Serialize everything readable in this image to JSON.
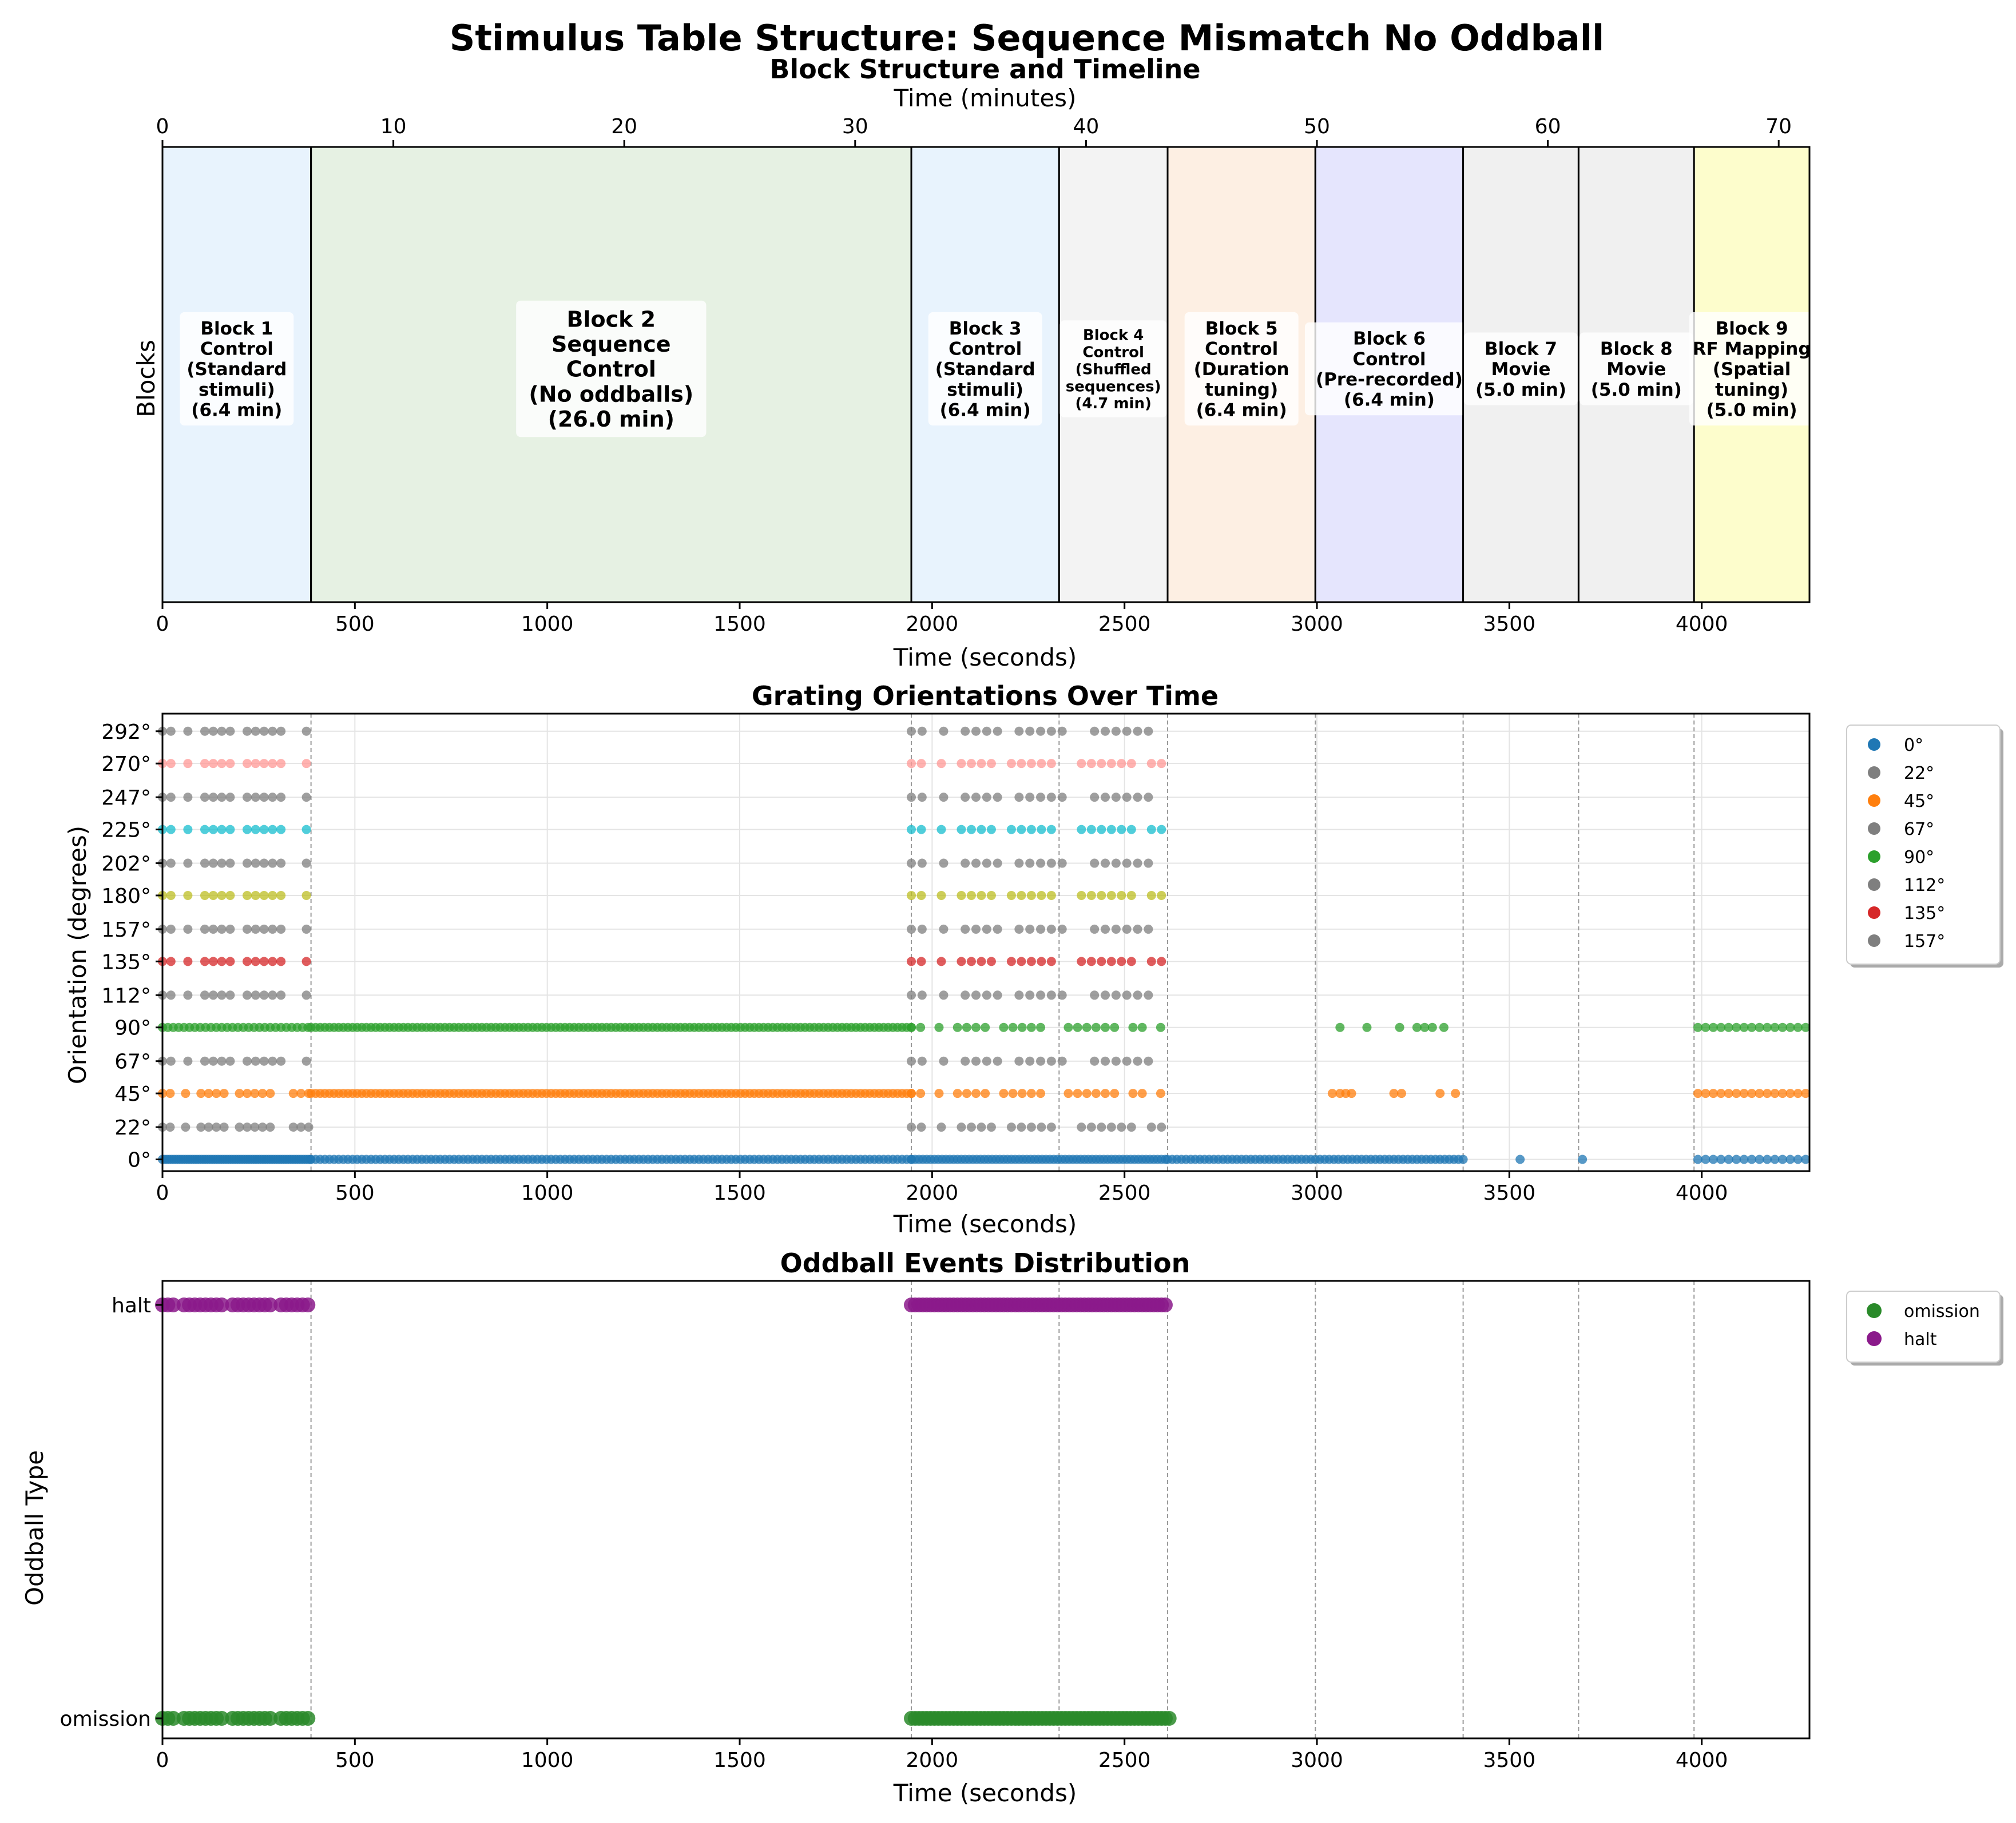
{
  "figure_title": "Stimulus Table Structure: Sequence Mismatch No Oddball",
  "chart_data": [
    {
      "type": "timeline",
      "title": "Block Structure and Timeline",
      "xlabel": "Time (seconds)",
      "ylabel": "Blocks",
      "top_xlabel": "Time (minutes)",
      "xlim": [
        0,
        4280
      ],
      "xticks": [
        0,
        500,
        1000,
        1500,
        2000,
        2500,
        3000,
        3500,
        4000
      ],
      "minute_ticks": [
        0,
        10,
        20,
        30,
        40,
        50,
        60,
        70
      ],
      "blocks": [
        {
          "start": 0,
          "end": 386,
          "color": "#e8f3fd",
          "label": [
            "Block 1",
            "Control",
            "(Standard",
            "stimuli)",
            "(6.4 min)"
          ],
          "font": "small"
        },
        {
          "start": 386,
          "end": 1946,
          "color": "#e6f1e3",
          "label": [
            "Block 2",
            "Sequence",
            "Control",
            "(No oddballs)",
            "(26.0 min)"
          ],
          "font": "large"
        },
        {
          "start": 1946,
          "end": 2330,
          "color": "#e8f3fd",
          "label": [
            "Block 3",
            "Control",
            "(Standard",
            "stimuli)",
            "(6.4 min)"
          ],
          "font": "small"
        },
        {
          "start": 2330,
          "end": 2612,
          "color": "#f3f3f3",
          "label": [
            "Block 4",
            "Control",
            "(Shuffled",
            "sequences)",
            "(4.7 min)"
          ],
          "font": "tiny"
        },
        {
          "start": 2612,
          "end": 2996,
          "color": "#fdefe3",
          "label": [
            "Block 5",
            "Control",
            "(Duration",
            "tuning)",
            "(6.4 min)"
          ],
          "font": "small"
        },
        {
          "start": 2996,
          "end": 3380,
          "color": "#e5e5fd",
          "label": [
            "Block 6",
            "Control",
            "(Pre-recorded)",
            "(6.4 min)"
          ],
          "font": "small"
        },
        {
          "start": 3380,
          "end": 3680,
          "color": "#f0f0f0",
          "label": [
            "Block 7",
            "Movie",
            "(5.0 min)"
          ],
          "font": "small"
        },
        {
          "start": 3680,
          "end": 3980,
          "color": "#f0f0f0",
          "label": [
            "Block 8",
            "Movie",
            "(5.0 min)"
          ],
          "font": "small"
        },
        {
          "start": 3980,
          "end": 4280,
          "color": "#fdfdcc",
          "label": [
            "Block 9",
            "RF Mapping",
            "(Spatial",
            "tuning)",
            "(5.0 min)"
          ],
          "font": "small"
        }
      ]
    },
    {
      "type": "scatter",
      "title": "Grating Orientations Over Time",
      "xlabel": "Time (seconds)",
      "ylabel": "Orientation (degrees)",
      "xlim": [
        0,
        4280
      ],
      "xticks": [
        0,
        500,
        1000,
        1500,
        2000,
        2500,
        3000,
        3500,
        4000
      ],
      "yticks": [
        0,
        22,
        45,
        67,
        90,
        112,
        135,
        157,
        180,
        202,
        225,
        247,
        270,
        292
      ],
      "ytick_labels": [
        "0°",
        "22°",
        "45°",
        "67°",
        "90°",
        "112°",
        "135°",
        "157°",
        "180°",
        "202°",
        "225°",
        "247°",
        "270°",
        "292°"
      ],
      "block_boundaries": [
        386,
        1946,
        2330,
        2612,
        2996,
        3380,
        3680,
        3980
      ],
      "grid": true,
      "legend": {
        "position": "outside top-right",
        "entries": [
          {
            "label": "0°",
            "color": "#1f77b4"
          },
          {
            "label": "22°",
            "color": "#7f7f7f"
          },
          {
            "label": "45°",
            "color": "#ff7f0e"
          },
          {
            "label": "67°",
            "color": "#7f7f7f"
          },
          {
            "label": "90°",
            "color": "#2ca02c"
          },
          {
            "label": "112°",
            "color": "#7f7f7f"
          },
          {
            "label": "135°",
            "color": "#d62728"
          },
          {
            "label": "157°",
            "color": "#7f7f7f"
          }
        ]
      },
      "series": [
        {
          "orientation": 0,
          "color": "#1f77b4",
          "segments": [
            [
              0,
              386,
              6
            ],
            [
              386,
              1946,
              12
            ],
            [
              1946,
              2612,
              10
            ],
            [
              2612,
              3386,
              12
            ]
          ],
          "points": [
            3528,
            3690,
            3990,
            4010,
            4030,
            4050,
            4070,
            4090,
            4110,
            4130,
            4150,
            4170,
            4190,
            4210,
            4230,
            4250,
            4270
          ]
        },
        {
          "orientation": 22,
          "color": "#7f7f7f",
          "segments": [
            [
              0,
              386,
              20
            ],
            [
              1946,
              2612,
              26
            ]
          ],
          "points": []
        },
        {
          "orientation": 45,
          "color": "#ff7f0e",
          "segments": [
            [
              0,
              386,
              20
            ],
            [
              386,
              1946,
              12
            ],
            [
              1946,
              2612,
              24
            ]
          ],
          "points": [
            3040,
            3060,
            3075,
            3090,
            3200,
            3220,
            3320,
            3360,
            3990,
            4010,
            4030,
            4050,
            4070,
            4090,
            4110,
            4130,
            4150,
            4170,
            4190,
            4210,
            4230,
            4250,
            4270
          ]
        },
        {
          "orientation": 67,
          "color": "#7f7f7f",
          "segments": [
            [
              0,
              386,
              22
            ],
            [
              1946,
              2612,
              28
            ]
          ],
          "points": []
        },
        {
          "orientation": 90,
          "color": "#2ca02c",
          "segments": [
            [
              0,
              386,
              14
            ],
            [
              386,
              1946,
              12
            ],
            [
              1946,
              2612,
              24
            ]
          ],
          "points": [
            3060,
            3130,
            3215,
            3260,
            3280,
            3300,
            3330,
            3990,
            4010,
            4030,
            4050,
            4070,
            4090,
            4110,
            4130,
            4150,
            4170,
            4190,
            4210,
            4230,
            4250,
            4270
          ]
        },
        {
          "orientation": 112,
          "color": "#7f7f7f",
          "segments": [
            [
              0,
              386,
              22
            ],
            [
              1946,
              2612,
              28
            ]
          ],
          "points": []
        },
        {
          "orientation": 135,
          "color": "#d62728",
          "segments": [
            [
              0,
              386,
              22
            ],
            [
              1946,
              2612,
              26
            ]
          ],
          "points": []
        },
        {
          "orientation": 157,
          "color": "#7f7f7f",
          "segments": [
            [
              0,
              386,
              22
            ],
            [
              1946,
              2612,
              28
            ]
          ],
          "points": []
        },
        {
          "orientation": 180,
          "color": "#bcbd22",
          "segments": [
            [
              0,
              386,
              22
            ],
            [
              1946,
              2612,
              26
            ]
          ],
          "points": []
        },
        {
          "orientation": 202,
          "color": "#7f7f7f",
          "segments": [
            [
              0,
              386,
              22
            ],
            [
              1946,
              2612,
              28
            ]
          ],
          "points": []
        },
        {
          "orientation": 225,
          "color": "#17becf",
          "segments": [
            [
              0,
              386,
              22
            ],
            [
              1946,
              2612,
              26
            ]
          ],
          "points": []
        },
        {
          "orientation": 247,
          "color": "#7f7f7f",
          "segments": [
            [
              0,
              386,
              22
            ],
            [
              1946,
              2612,
              28
            ]
          ],
          "points": []
        },
        {
          "orientation": 270,
          "color": "#ff9896",
          "segments": [
            [
              0,
              386,
              22
            ],
            [
              1946,
              2612,
              26
            ]
          ],
          "points": []
        },
        {
          "orientation": 292,
          "color": "#7f7f7f",
          "segments": [
            [
              0,
              386,
              22
            ],
            [
              1946,
              2612,
              28
            ]
          ],
          "points": []
        }
      ]
    },
    {
      "type": "scatter",
      "title": "Oddball Events Distribution",
      "xlabel": "Time (seconds)",
      "ylabel": "Oddball Type",
      "xlim": [
        0,
        4280
      ],
      "xticks": [
        0,
        500,
        1000,
        1500,
        2000,
        2500,
        3000,
        3500,
        4000
      ],
      "categories": [
        "omission",
        "halt"
      ],
      "block_boundaries": [
        386,
        1946,
        2330,
        2612,
        2996,
        3380,
        3680,
        3980
      ],
      "legend": {
        "position": "outside top-right",
        "entries": [
          {
            "label": "omission",
            "color": "#2a8a2a"
          },
          {
            "label": "halt",
            "color": "#8b1a8b"
          }
        ]
      },
      "series": [
        {
          "name": "omission",
          "color": "#2a8a2a",
          "segments": [
            [
              0,
              390,
              14
            ],
            [
              1946,
              2616,
              10
            ]
          ]
        },
        {
          "name": "halt",
          "color": "#8b1a8b",
          "segments": [
            [
              0,
              390,
              14
            ],
            [
              1946,
              2612,
              10
            ]
          ]
        }
      ]
    }
  ]
}
